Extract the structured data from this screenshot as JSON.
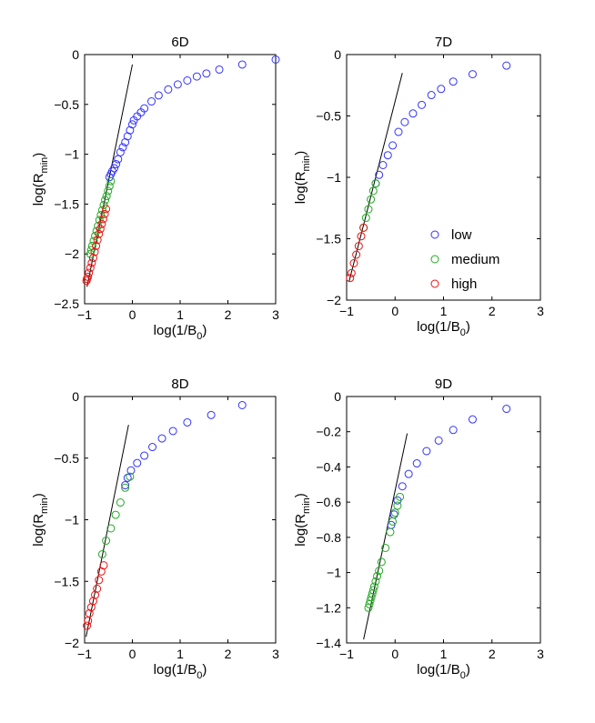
{
  "colors": {
    "low": "#3333ff",
    "medium": "#22aa22",
    "high": "#ee1111",
    "fit_line": "#000000",
    "axes": "#000000"
  },
  "legend": [
    {
      "name": "low",
      "label": "low",
      "color": "#3333ff"
    },
    {
      "name": "medium",
      "label": "medium",
      "color": "#22aa22"
    },
    {
      "name": "high",
      "label": "high",
      "color": "#ee1111"
    }
  ],
  "chart_data": [
    {
      "type": "scatter",
      "title": "6D",
      "xlabel": "log(1/B",
      "xlabel_sub": "0",
      "xlabel_end": ")",
      "ylabel": "log(R",
      "ylabel_sub": "min",
      "ylabel_end": ")",
      "xlim": [
        -1,
        3
      ],
      "ylim": [
        -2.5,
        0
      ],
      "xticks": [
        -1,
        0,
        1,
        2,
        3
      ],
      "xtick_labels": [
        "−1",
        "0",
        "1",
        "2",
        "3"
      ],
      "yticks": [
        -2.5,
        -2,
        -1.5,
        -1,
        -0.5,
        0
      ],
      "ytick_labels": [
        "−2.5",
        "−2",
        "−1.5",
        "−1",
        "−0.5",
        "0"
      ],
      "fit_line": {
        "x": [
          -0.95,
          0.0
        ],
        "y": [
          -2.33,
          -0.1
        ]
      },
      "series": [
        {
          "name": "low",
          "x": [
            3.0,
            2.3,
            1.82,
            1.55,
            1.35,
            1.15,
            0.95,
            0.75,
            0.55,
            0.4,
            0.25,
            0.18,
            0.1,
            0.03,
            0.0,
            -0.05,
            -0.1,
            -0.15,
            -0.2,
            -0.25,
            -0.3,
            -0.34,
            -0.38,
            -0.42,
            -0.45,
            -0.48
          ],
          "y": [
            -0.05,
            -0.1,
            -0.15,
            -0.19,
            -0.22,
            -0.26,
            -0.3,
            -0.35,
            -0.41,
            -0.47,
            -0.54,
            -0.58,
            -0.62,
            -0.66,
            -0.7,
            -0.76,
            -0.82,
            -0.88,
            -0.93,
            -0.98,
            -1.05,
            -1.1,
            -1.14,
            -1.17,
            -1.2,
            -1.23
          ]
        },
        {
          "name": "medium",
          "x": [
            -0.45,
            -0.48,
            -0.51,
            -0.54,
            -0.57,
            -0.6,
            -0.63,
            -0.66,
            -0.69,
            -0.72,
            -0.75,
            -0.78,
            -0.81,
            -0.84,
            -0.86,
            -0.88
          ],
          "y": [
            -1.27,
            -1.32,
            -1.37,
            -1.42,
            -1.46,
            -1.51,
            -1.56,
            -1.61,
            -1.66,
            -1.72,
            -1.77,
            -1.82,
            -1.87,
            -1.92,
            -1.96,
            -2.0
          ]
        },
        {
          "name": "high",
          "x": [
            -0.55,
            -0.58,
            -0.61,
            -0.64,
            -0.67,
            -0.7,
            -0.73,
            -0.76,
            -0.79,
            -0.82,
            -0.85,
            -0.88,
            -0.91,
            -0.93,
            -0.95,
            -0.96
          ],
          "y": [
            -1.55,
            -1.6,
            -1.65,
            -1.7,
            -1.75,
            -1.8,
            -1.86,
            -1.92,
            -1.98,
            -2.04,
            -2.09,
            -2.14,
            -2.19,
            -2.23,
            -2.25,
            -2.27
          ]
        }
      ]
    },
    {
      "type": "scatter",
      "title": "7D",
      "xlabel": "log(1/B",
      "xlabel_sub": "0",
      "xlabel_end": ")",
      "ylabel": "log(R",
      "ylabel_sub": "min",
      "ylabel_end": ")",
      "xlim": [
        -1,
        3
      ],
      "ylim": [
        -2,
        0
      ],
      "xticks": [
        -1,
        0,
        1,
        2,
        3
      ],
      "xtick_labels": [
        "−1",
        "0",
        "1",
        "2",
        "3"
      ],
      "yticks": [
        -2,
        -1.5,
        -1,
        -0.5,
        0
      ],
      "ytick_labels": [
        "−2",
        "−1.5",
        "−1",
        "−0.5",
        "0"
      ],
      "fit_line": {
        "x": [
          -0.95,
          0.15
        ],
        "y": [
          -1.85,
          -0.15
        ]
      },
      "series": [
        {
          "name": "low",
          "x": [
            2.3,
            1.6,
            1.2,
            0.95,
            0.75,
            0.55,
            0.37,
            0.2,
            0.07,
            -0.05,
            -0.15,
            -0.25,
            -0.33,
            -0.4
          ],
          "y": [
            -0.09,
            -0.16,
            -0.22,
            -0.28,
            -0.33,
            -0.41,
            -0.48,
            -0.55,
            -0.63,
            -0.74,
            -0.82,
            -0.9,
            -0.98,
            -1.05
          ]
        },
        {
          "name": "medium",
          "x": [
            -0.4,
            -0.45,
            -0.5,
            -0.55,
            -0.6,
            -0.65
          ],
          "y": [
            -1.05,
            -1.11,
            -1.18,
            -1.26,
            -1.33,
            -1.41
          ]
        },
        {
          "name": "high",
          "x": [
            -0.65,
            -0.7,
            -0.75,
            -0.8,
            -0.85,
            -0.9,
            -0.93
          ],
          "y": [
            -1.41,
            -1.48,
            -1.56,
            -1.63,
            -1.7,
            -1.78,
            -1.82
          ]
        }
      ]
    },
    {
      "type": "scatter",
      "title": "8D",
      "xlabel": "log(1/B",
      "xlabel_sub": "0",
      "xlabel_end": ")",
      "ylabel": "log(R",
      "ylabel_sub": "min",
      "ylabel_end": ")",
      "xlim": [
        -1,
        3
      ],
      "ylim": [
        -2,
        0
      ],
      "xticks": [
        -1,
        0,
        1,
        2,
        3
      ],
      "xtick_labels": [
        "−1",
        "0",
        "1",
        "2",
        "3"
      ],
      "yticks": [
        -2,
        -1.5,
        -1,
        -0.5,
        0
      ],
      "ytick_labels": [
        "−2",
        "−1.5",
        "−1",
        "−0.5",
        "0"
      ],
      "fit_line": {
        "x": [
          -0.97,
          -0.08
        ],
        "y": [
          -1.95,
          -0.23
        ]
      },
      "series": [
        {
          "name": "low",
          "x": [
            2.3,
            1.65,
            1.15,
            0.85,
            0.62,
            0.42,
            0.25,
            0.1,
            -0.03,
            -0.1,
            -0.15
          ],
          "y": [
            -0.07,
            -0.15,
            -0.21,
            -0.28,
            -0.34,
            -0.41,
            -0.48,
            -0.54,
            -0.6,
            -0.66,
            -0.72
          ]
        },
        {
          "name": "medium",
          "x": [
            -0.05,
            -0.15,
            -0.25,
            -0.35,
            -0.45,
            -0.55,
            -0.63
          ],
          "y": [
            -0.65,
            -0.74,
            -0.86,
            -0.96,
            -1.07,
            -1.17,
            -1.28
          ]
        },
        {
          "name": "high",
          "x": [
            -0.6,
            -0.65,
            -0.7,
            -0.74,
            -0.78,
            -0.82,
            -0.86,
            -0.9,
            -0.93,
            -0.95
          ],
          "y": [
            -1.37,
            -1.42,
            -1.49,
            -1.56,
            -1.61,
            -1.66,
            -1.71,
            -1.76,
            -1.82,
            -1.86
          ]
        }
      ]
    },
    {
      "type": "scatter",
      "title": "9D",
      "xlabel": "log(1/B",
      "xlabel_sub": "0",
      "xlabel_end": ")",
      "ylabel": "log(R",
      "ylabel_sub": "min",
      "ylabel_end": ")",
      "xlim": [
        -1,
        3
      ],
      "ylim": [
        -1.4,
        0
      ],
      "xticks": [
        -1,
        0,
        1,
        2,
        3
      ],
      "xtick_labels": [
        "−1",
        "0",
        "1",
        "2",
        "3"
      ],
      "yticks": [
        -1.4,
        -1.2,
        -1,
        -0.8,
        -0.6,
        -0.4,
        -0.2,
        0
      ],
      "ytick_labels": [
        "−1.4",
        "−1.2",
        "−1",
        "−0.8",
        "−0.6",
        "−0.4",
        "−0.2",
        "0"
      ],
      "fit_line": {
        "x": [
          -0.65,
          0.25
        ],
        "y": [
          -1.38,
          -0.21
        ]
      },
      "series": [
        {
          "name": "low",
          "x": [
            2.3,
            1.6,
            1.2,
            0.9,
            0.65,
            0.45,
            0.28,
            0.15,
            0.05,
            -0.02,
            -0.08
          ],
          "y": [
            -0.07,
            -0.13,
            -0.19,
            -0.25,
            -0.31,
            -0.38,
            -0.44,
            -0.51,
            -0.59,
            -0.67,
            -0.73
          ]
        },
        {
          "name": "medium",
          "x": [
            0.1,
            0.05,
            0.0,
            -0.05,
            -0.1,
            -0.2,
            -0.28,
            -0.33,
            -0.37,
            -0.4,
            -0.43,
            -0.45,
            -0.47,
            -0.49,
            -0.51,
            -0.53,
            -0.55
          ],
          "y": [
            -0.57,
            -0.62,
            -0.66,
            -0.71,
            -0.77,
            -0.86,
            -0.94,
            -0.99,
            -1.02,
            -1.05,
            -1.08,
            -1.1,
            -1.12,
            -1.14,
            -1.16,
            -1.18,
            -1.2
          ]
        }
      ]
    }
  ]
}
